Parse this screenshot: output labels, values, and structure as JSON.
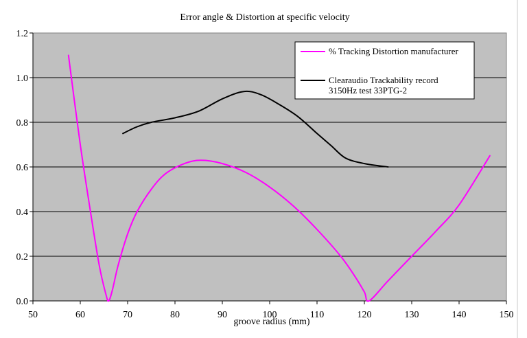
{
  "chart_data": {
    "type": "line",
    "title": "Error angle & Distortion at specific velocity",
    "xlabel": "groove radius (mm)",
    "ylabel": "",
    "xlim": [
      50,
      150
    ],
    "ylim": [
      0,
      1.2
    ],
    "x_ticks": [
      "50",
      "60",
      "70",
      "80",
      "90",
      "100",
      "110",
      "120",
      "130",
      "140",
      "150"
    ],
    "y_ticks": [
      "0.0",
      "0.2",
      "0.4",
      "0.6",
      "0.8",
      "1.0",
      "1.2"
    ],
    "grid": "horizontal",
    "legend_position": "top-right",
    "plot_background": "#c0c0c0",
    "series": [
      {
        "name": "% Tracking Distortion manufacturer",
        "color": "#ff00ff",
        "points": [
          [
            57.5,
            1.1
          ],
          [
            60,
            0.7
          ],
          [
            62,
            0.42
          ],
          [
            64,
            0.16
          ],
          [
            65.4,
            0.03
          ],
          [
            66,
            0.0
          ],
          [
            66.8,
            0.05
          ],
          [
            68,
            0.16
          ],
          [
            70,
            0.3
          ],
          [
            72,
            0.4
          ],
          [
            75,
            0.5
          ],
          [
            78,
            0.57
          ],
          [
            82,
            0.615
          ],
          [
            85.5,
            0.63
          ],
          [
            90,
            0.615
          ],
          [
            95,
            0.575
          ],
          [
            100,
            0.51
          ],
          [
            105,
            0.425
          ],
          [
            110,
            0.32
          ],
          [
            115,
            0.2
          ],
          [
            118,
            0.11
          ],
          [
            120,
            0.04
          ],
          [
            121,
            0.0
          ],
          [
            125,
            0.09
          ],
          [
            130,
            0.2
          ],
          [
            135,
            0.31
          ],
          [
            140,
            0.43
          ],
          [
            146.5,
            0.65
          ]
        ]
      },
      {
        "name": "Clearaudio Trackability record 3150Hz test 33PTG-2",
        "color": "#000000",
        "points": [
          [
            69,
            0.75
          ],
          [
            72,
            0.78
          ],
          [
            75,
            0.8
          ],
          [
            80,
            0.82
          ],
          [
            85,
            0.85
          ],
          [
            90,
            0.905
          ],
          [
            94.5,
            0.938
          ],
          [
            98,
            0.925
          ],
          [
            102,
            0.88
          ],
          [
            106,
            0.825
          ],
          [
            110,
            0.75
          ],
          [
            113,
            0.695
          ],
          [
            116,
            0.64
          ],
          [
            120,
            0.615
          ],
          [
            125,
            0.6
          ]
        ]
      }
    ]
  }
}
